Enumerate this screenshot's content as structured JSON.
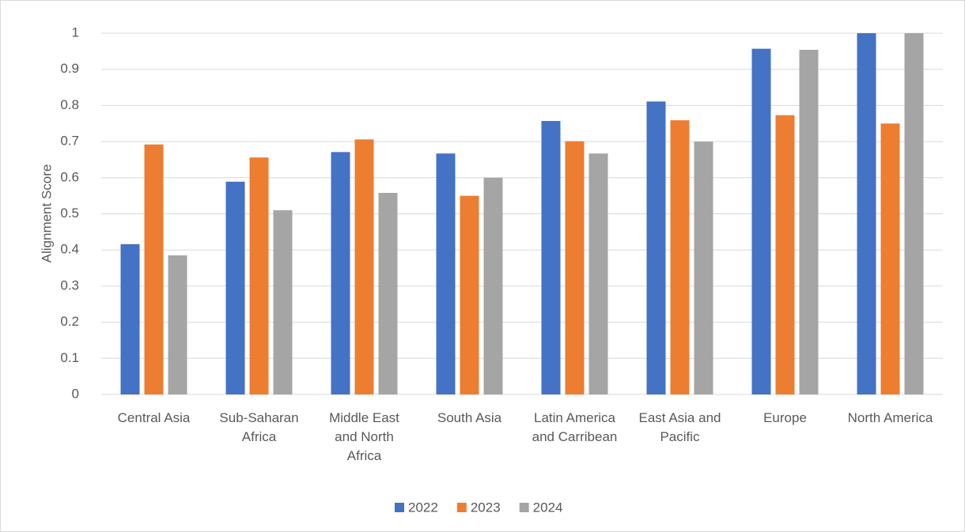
{
  "chart_data": {
    "type": "bar",
    "y_label": "Alignment Score",
    "categories": [
      "Central Asia",
      "Sub-Saharan Africa",
      "Middle East and North Africa",
      "South Asia",
      "Latin America and Carribean",
      "East Asia and Pacific",
      "Europe",
      "North America"
    ],
    "series": [
      {
        "name": "2022",
        "color": "#4472c4",
        "values": [
          0.416,
          0.589,
          0.671,
          0.667,
          0.757,
          0.811,
          0.957,
          1
        ]
      },
      {
        "name": "2023",
        "color": "#ed7d31",
        "values": [
          0.692,
          0.656,
          0.706,
          0.55,
          0.701,
          0.759,
          0.773,
          0.75
        ]
      },
      {
        "name": "2024",
        "color": "#a5a5a5",
        "values": [
          0.385,
          0.51,
          0.558,
          0.6,
          0.667,
          0.7,
          0.954,
          1
        ]
      }
    ],
    "ylim": [
      0,
      1
    ],
    "yticks": [
      0,
      0.1,
      0.2,
      0.3,
      0.4,
      0.5,
      0.6,
      0.7,
      0.8,
      0.9,
      1
    ],
    "grid": true,
    "legend": "bottom"
  }
}
